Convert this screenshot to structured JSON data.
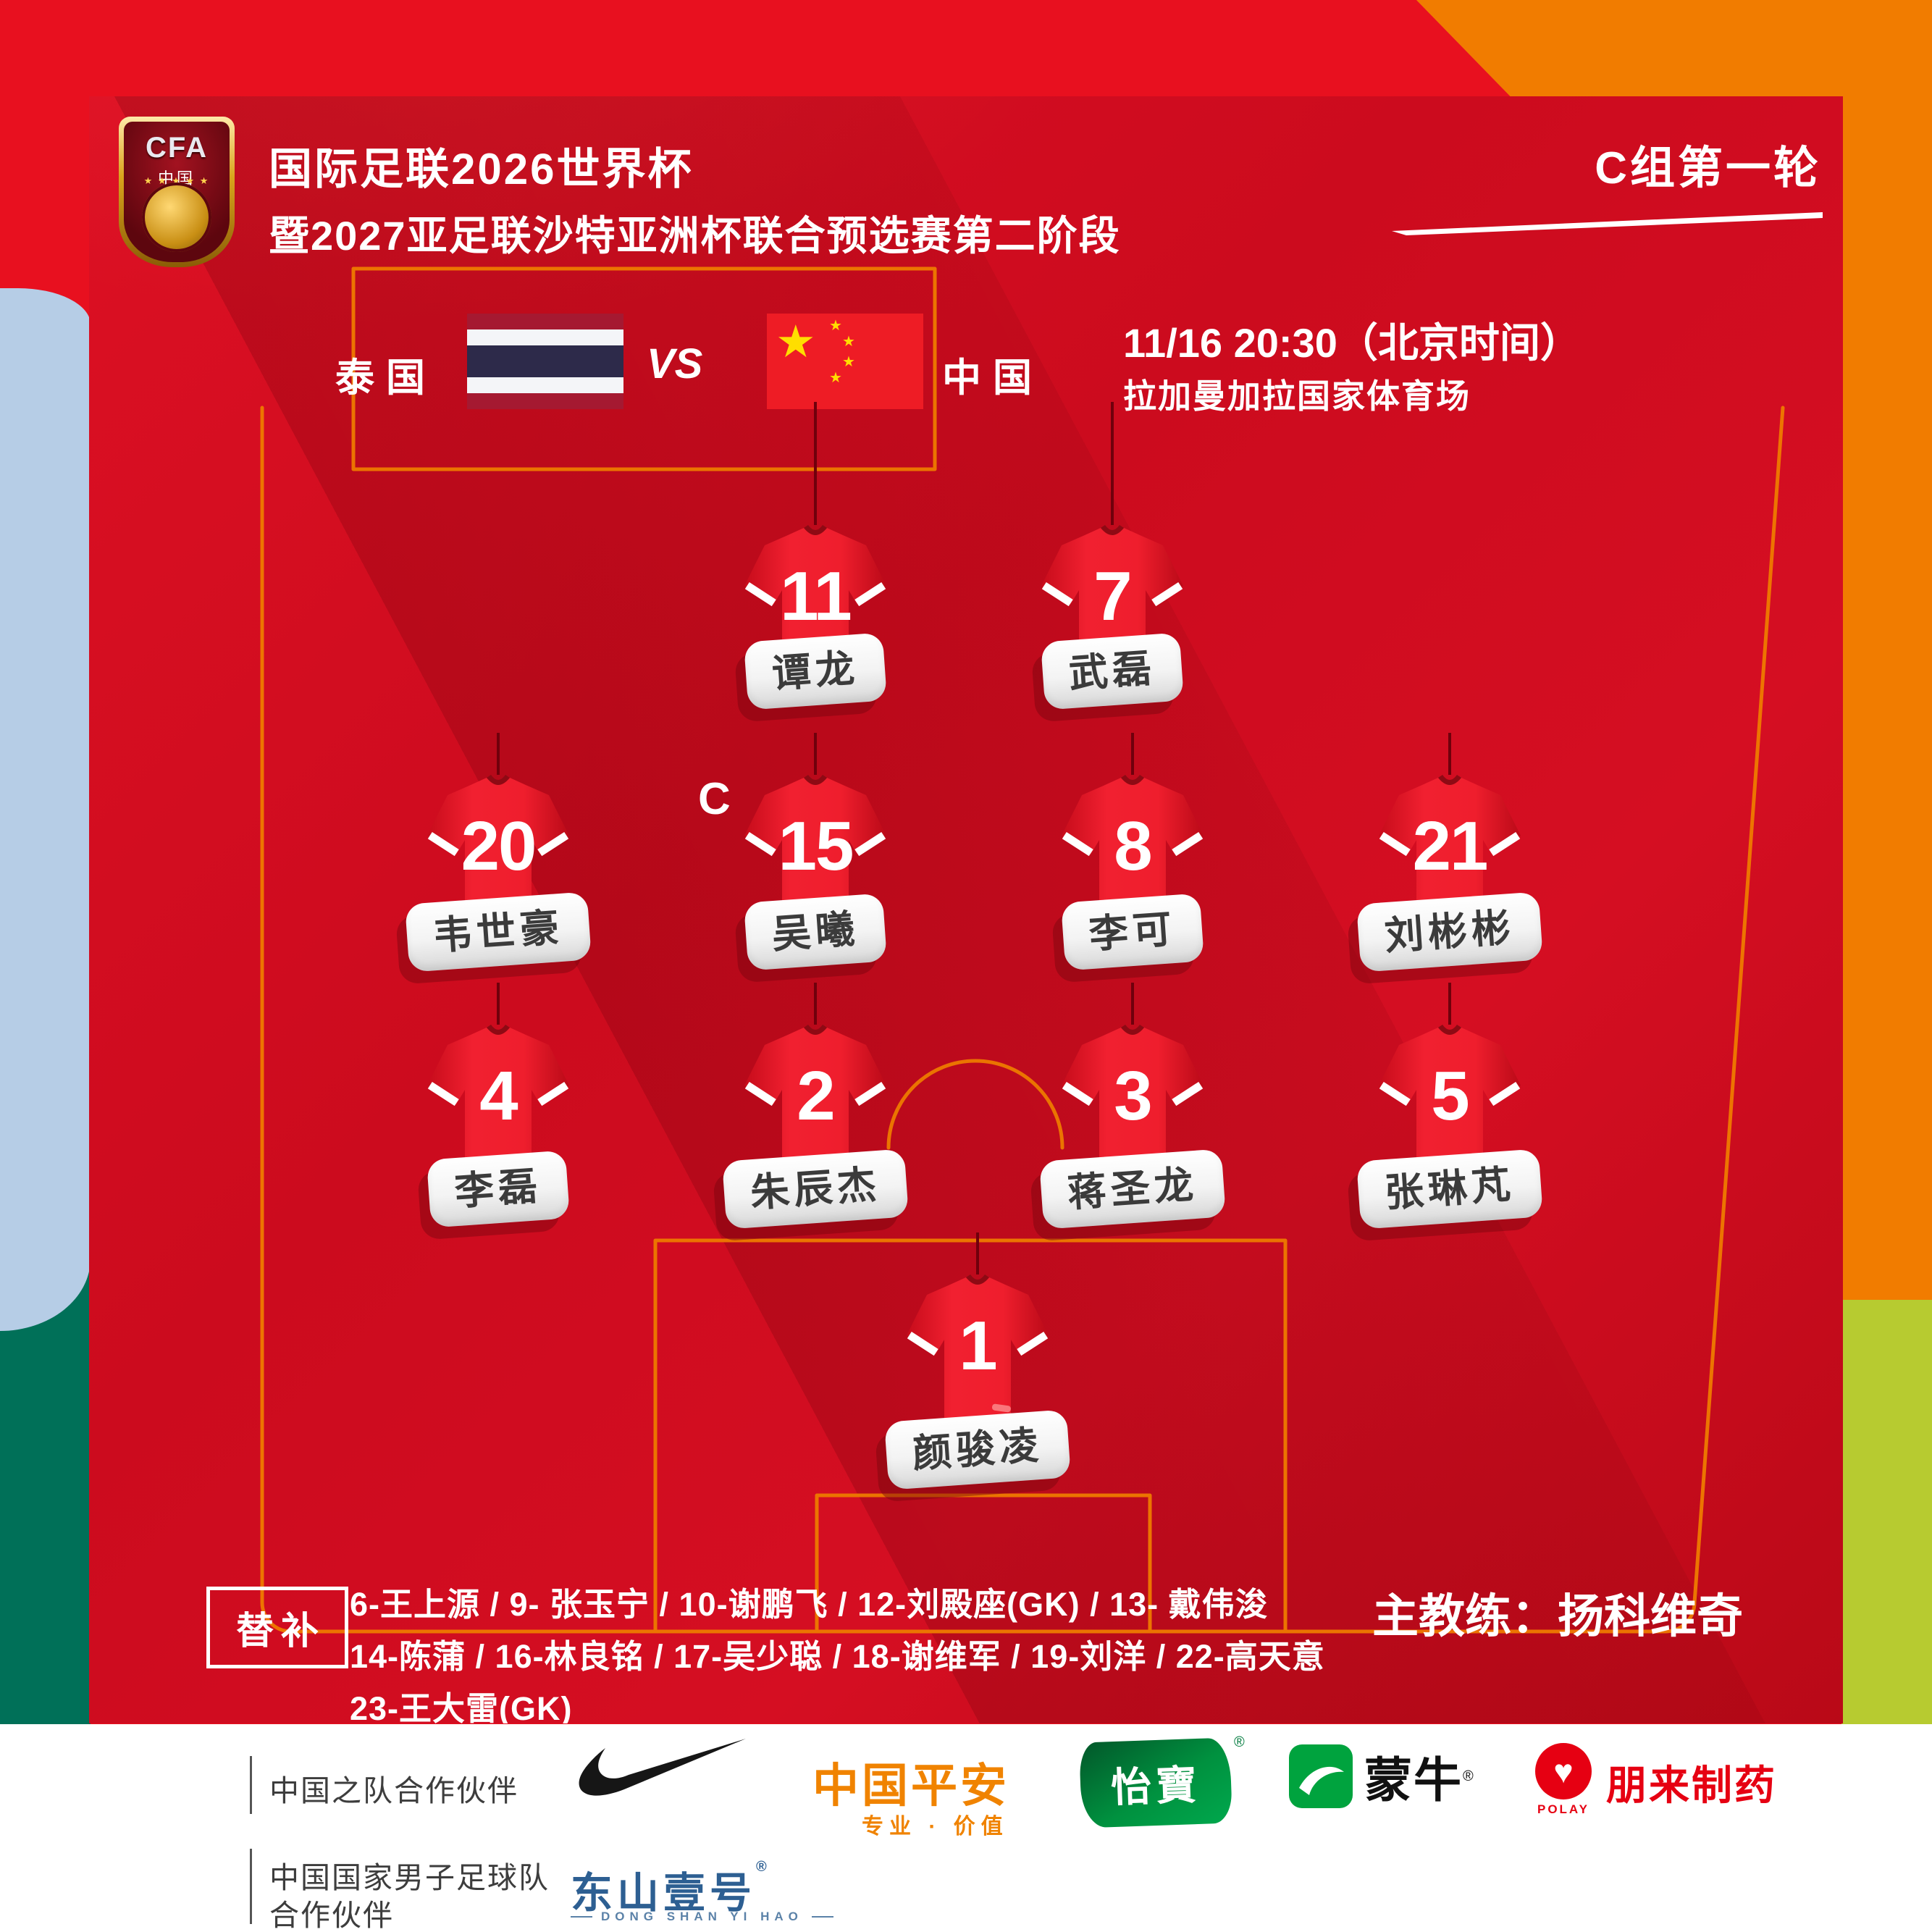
{
  "colors": {
    "bg_red": "#e8101f",
    "panel_red": "#cc0b1e",
    "orange": "#f17c00",
    "lime": "#b7cb30",
    "light_blue": "#b6cde6",
    "dark_green": "#007058",
    "pitch_line": "#ee7a00",
    "pingan_orange": "#f08300",
    "mengniu_green": "#00a33e",
    "yibao_green": "#00913f",
    "polay_red": "#e60012",
    "dongshan_blue": "#2d5f92"
  },
  "header": {
    "cfa_line1": "CFA",
    "cfa_line2": "中国",
    "cfa_stars": "★ ★ ★ ★ ★",
    "title_line1": "国际足联2026世界杯",
    "title_line2": "暨2027亚足联沙特亚洲杯联合预选赛第二阶段",
    "round": "C组第一轮"
  },
  "match": {
    "team_left": "泰国",
    "team_right": "中国",
    "vs": "VS",
    "datetime": "11/16 20:30（北京时间）",
    "venue": "拉加曼加拉国家体育场",
    "cn_star_big": "★",
    "cn_star_small": "★"
  },
  "formation": {
    "captain_label": "C",
    "rows": [
      {
        "position": "forwards",
        "players": [
          {
            "num": "11",
            "name": "谭龙"
          },
          {
            "num": "7",
            "name": "武磊"
          }
        ]
      },
      {
        "position": "midfielders",
        "players": [
          {
            "num": "20",
            "name": "韦世豪"
          },
          {
            "num": "15",
            "name": "吴曦",
            "captain": true
          },
          {
            "num": "8",
            "name": "李可"
          },
          {
            "num": "21",
            "name": "刘彬彬"
          }
        ]
      },
      {
        "position": "defenders",
        "players": [
          {
            "num": "4",
            "name": "李磊"
          },
          {
            "num": "2",
            "name": "朱辰杰"
          },
          {
            "num": "3",
            "name": "蒋圣龙"
          },
          {
            "num": "5",
            "name": "张琳芃"
          }
        ]
      },
      {
        "position": "goalkeeper",
        "players": [
          {
            "num": "1",
            "name": "颜骏凌"
          }
        ]
      }
    ]
  },
  "bench": {
    "label": "替补",
    "line1": "6-王上源 / 9- 张玉宁 / 10-谢鹏飞 / 12-刘殿座(GK) / 13- 戴伟浚",
    "line2": "14-陈蒲 / 16-林良铭 / 17-吴少聪 / 18-谢维军 / 19-刘洋 / 22-高天意",
    "line3": "23-王大雷(GK)",
    "coach": "主教练：扬科维奇"
  },
  "footer": {
    "partner1_label": "中国之队合作伙伴",
    "partner2_line1": "中国国家男子足球队",
    "partner2_line2": "合作伙伴",
    "pingan": {
      "name": "中国平安",
      "tagline": "专业 · 价值"
    },
    "yibao": {
      "name": "怡寶",
      "reg": "®"
    },
    "mengniu": {
      "name": "蒙牛",
      "reg": "®"
    },
    "polay": {
      "name": "朋来制药",
      "latin": "POLAY",
      "heart": "♥"
    },
    "dongshan": {
      "name": "东山壹号",
      "reg": "®",
      "latin": "DONG SHAN YI HAO"
    }
  }
}
